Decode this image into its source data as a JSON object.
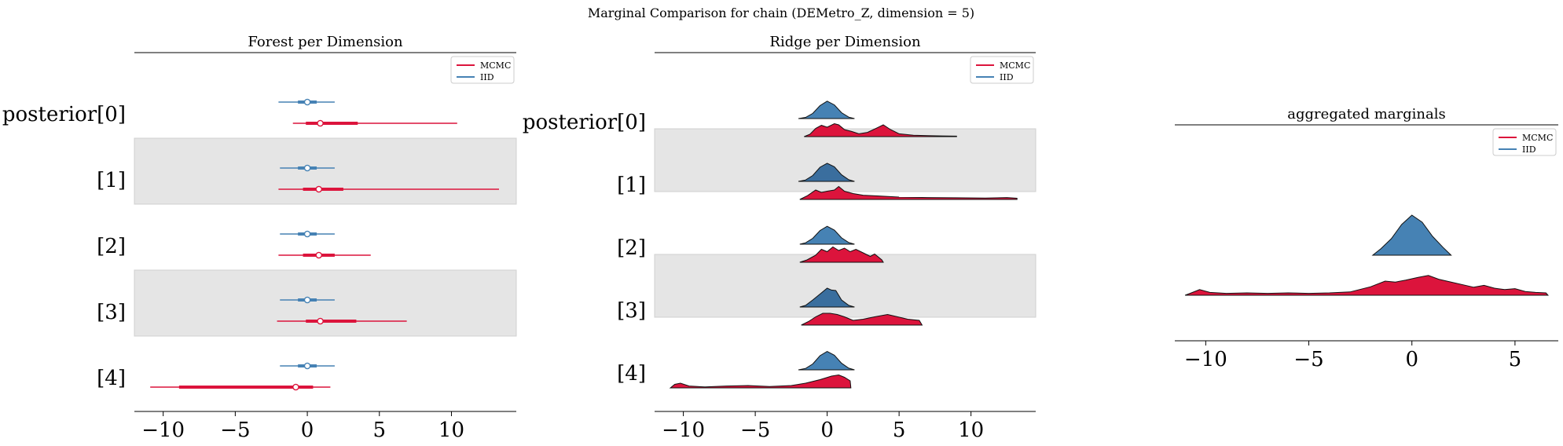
{
  "figure": {
    "suptitle": "Marginal Comparison for chain (DEMetro_Z, dimension = 5)"
  },
  "colors": {
    "mcmc": "#dc143c",
    "iid": "#4682b4",
    "iid_dark": "#3a6e9e",
    "band": "#e5e5e5"
  },
  "chart_data": [
    {
      "type": "forest",
      "title": "Forest per Dimension",
      "row_labels": [
        "posterior[0]",
        "[1]",
        "[2]",
        "[3]",
        "[4]"
      ],
      "xlim": [
        -12,
        14.5
      ],
      "xticks": [
        -10,
        -5,
        0,
        5,
        10
      ],
      "xtick_labels": [
        "−10",
        "−5",
        "0",
        "5",
        "10"
      ],
      "legend": {
        "placement": "top-right",
        "entries": [
          "MCMC",
          "IID"
        ]
      },
      "series": [
        {
          "name": "IID",
          "rows": [
            {
              "median": 0.0,
              "hdi94": [
                -2.0,
                1.9
              ],
              "iqr": [
                -0.65,
                0.65
              ]
            },
            {
              "median": 0.0,
              "hdi94": [
                -1.9,
                1.9
              ],
              "iqr": [
                -0.65,
                0.65
              ]
            },
            {
              "median": 0.0,
              "hdi94": [
                -1.9,
                1.9
              ],
              "iqr": [
                -0.65,
                0.65
              ]
            },
            {
              "median": 0.0,
              "hdi94": [
                -1.9,
                1.9
              ],
              "iqr": [
                -0.65,
                0.65
              ]
            },
            {
              "median": 0.0,
              "hdi94": [
                -1.9,
                1.9
              ],
              "iqr": [
                -0.65,
                0.65
              ]
            }
          ]
        },
        {
          "name": "MCMC",
          "rows": [
            {
              "median": 0.9,
              "hdi94": [
                -1.0,
                10.4
              ],
              "iqr": [
                -0.1,
                3.5
              ]
            },
            {
              "median": 0.8,
              "hdi94": [
                -2.0,
                13.3
              ],
              "iqr": [
                -0.3,
                2.5
              ]
            },
            {
              "median": 0.8,
              "hdi94": [
                -2.0,
                4.4
              ],
              "iqr": [
                -0.3,
                1.9
              ]
            },
            {
              "median": 0.9,
              "hdi94": [
                -2.1,
                6.9
              ],
              "iqr": [
                -0.1,
                3.4
              ]
            },
            {
              "median": -0.8,
              "hdi94": [
                -10.9,
                1.6
              ],
              "iqr": [
                -8.9,
                0.4
              ]
            }
          ]
        }
      ]
    },
    {
      "type": "ridgeline",
      "title": "Ridge per Dimension",
      "row_labels": [
        "posterior[0]",
        "[1]",
        "[2]",
        "[3]",
        "[4]"
      ],
      "xlim": [
        -12,
        14.5
      ],
      "xticks": [
        -10,
        -5,
        0,
        5,
        10
      ],
      "xtick_labels": [
        "−10",
        "−5",
        "0",
        "5",
        "10"
      ],
      "legend": {
        "placement": "top-right",
        "entries": [
          "MCMC",
          "IID"
        ]
      },
      "series": [
        {
          "name": "IID",
          "rows": [
            {
              "points": [
                [
                  -2.0,
                  0.0
                ],
                [
                  -1.5,
                  0.05
                ],
                [
                  -1.0,
                  0.22
                ],
                [
                  -0.5,
                  0.55
                ],
                [
                  0.0,
                  0.74
                ],
                [
                  0.5,
                  0.58
                ],
                [
                  1.0,
                  0.25
                ],
                [
                  1.5,
                  0.06
                ],
                [
                  1.9,
                  0.0
                ]
              ]
            },
            {
              "points": [
                [
                  -2.0,
                  0.0
                ],
                [
                  -1.5,
                  0.06
                ],
                [
                  -1.0,
                  0.25
                ],
                [
                  -0.5,
                  0.6
                ],
                [
                  0.0,
                  0.77
                ],
                [
                  0.5,
                  0.62
                ],
                [
                  1.0,
                  0.28
                ],
                [
                  1.5,
                  0.07
                ],
                [
                  1.9,
                  0.0
                ]
              ]
            },
            {
              "points": [
                [
                  -1.9,
                  0.0
                ],
                [
                  -1.5,
                  0.06
                ],
                [
                  -1.0,
                  0.25
                ],
                [
                  -0.5,
                  0.58
                ],
                [
                  0.0,
                  0.76
                ],
                [
                  0.5,
                  0.6
                ],
                [
                  1.0,
                  0.27
                ],
                [
                  1.5,
                  0.07
                ],
                [
                  1.9,
                  0.0
                ]
              ]
            },
            {
              "points": [
                [
                  -1.9,
                  0.0
                ],
                [
                  -1.5,
                  0.07
                ],
                [
                  -1.0,
                  0.3
                ],
                [
                  -0.5,
                  0.55
                ],
                [
                  0.0,
                  0.8
                ],
                [
                  0.3,
                  0.72
                ],
                [
                  0.6,
                  0.7
                ],
                [
                  1.0,
                  0.3
                ],
                [
                  1.5,
                  0.07
                ],
                [
                  1.9,
                  0.0
                ]
              ]
            },
            {
              "points": [
                [
                  -2.0,
                  0.0
                ],
                [
                  -1.5,
                  0.06
                ],
                [
                  -1.0,
                  0.25
                ],
                [
                  -0.5,
                  0.6
                ],
                [
                  0.0,
                  0.78
                ],
                [
                  0.5,
                  0.62
                ],
                [
                  1.0,
                  0.28
                ],
                [
                  1.5,
                  0.07
                ],
                [
                  1.9,
                  0.0
                ]
              ]
            }
          ]
        },
        {
          "name": "MCMC",
          "rows": [
            {
              "points": [
                [
                  -1.6,
                  0.0
                ],
                [
                  -1.2,
                  0.1
                ],
                [
                  -0.8,
                  0.35
                ],
                [
                  -0.4,
                  0.48
                ],
                [
                  0.0,
                  0.4
                ],
                [
                  0.5,
                  0.55
                ],
                [
                  0.8,
                  0.5
                ],
                [
                  1.2,
                  0.3
                ],
                [
                  1.7,
                  0.22
                ],
                [
                  2.2,
                  0.12
                ],
                [
                  2.8,
                  0.18
                ],
                [
                  3.5,
                  0.38
                ],
                [
                  3.9,
                  0.5
                ],
                [
                  4.4,
                  0.3
                ],
                [
                  5.0,
                  0.12
                ],
                [
                  6.0,
                  0.06
                ],
                [
                  7.0,
                  0.04
                ],
                [
                  8.0,
                  0.03
                ],
                [
                  9.0,
                  0.02
                ]
              ]
            },
            {
              "points": [
                [
                  -1.9,
                  0.0
                ],
                [
                  -1.4,
                  0.15
                ],
                [
                  -0.8,
                  0.4
                ],
                [
                  -0.4,
                  0.3
                ],
                [
                  0.0,
                  0.35
                ],
                [
                  0.5,
                  0.4
                ],
                [
                  0.8,
                  0.55
                ],
                [
                  1.2,
                  0.35
                ],
                [
                  1.8,
                  0.25
                ],
                [
                  2.5,
                  0.18
                ],
                [
                  3.5,
                  0.15
                ],
                [
                  5.0,
                  0.1
                ],
                [
                  7.0,
                  0.08
                ],
                [
                  9.0,
                  0.07
                ],
                [
                  11.0,
                  0.06
                ],
                [
                  12.5,
                  0.08
                ],
                [
                  13.2,
                  0.05
                ]
              ]
            },
            {
              "points": [
                [
                  -1.9,
                  0.0
                ],
                [
                  -1.4,
                  0.1
                ],
                [
                  -0.8,
                  0.3
                ],
                [
                  -0.4,
                  0.55
                ],
                [
                  0.0,
                  0.45
                ],
                [
                  0.4,
                  0.65
                ],
                [
                  0.8,
                  0.5
                ],
                [
                  1.2,
                  0.6
                ],
                [
                  1.6,
                  0.45
                ],
                [
                  2.0,
                  0.55
                ],
                [
                  2.5,
                  0.4
                ],
                [
                  3.0,
                  0.25
                ],
                [
                  3.3,
                  0.35
                ],
                [
                  3.8,
                  0.1
                ],
                [
                  3.9,
                  0.0
                ]
              ]
            },
            {
              "points": [
                [
                  -1.8,
                  0.0
                ],
                [
                  -1.3,
                  0.15
                ],
                [
                  -0.8,
                  0.35
                ],
                [
                  -0.3,
                  0.5
                ],
                [
                  0.2,
                  0.5
                ],
                [
                  0.7,
                  0.45
                ],
                [
                  1.2,
                  0.35
                ],
                [
                  1.8,
                  0.2
                ],
                [
                  2.5,
                  0.25
                ],
                [
                  3.3,
                  0.35
                ],
                [
                  4.2,
                  0.45
                ],
                [
                  4.9,
                  0.35
                ],
                [
                  5.6,
                  0.25
                ],
                [
                  6.4,
                  0.2
                ],
                [
                  6.6,
                  0.0
                ]
              ]
            },
            {
              "points": [
                [
                  -10.9,
                  0.0
                ],
                [
                  -10.6,
                  0.15
                ],
                [
                  -10.2,
                  0.2
                ],
                [
                  -9.6,
                  0.08
                ],
                [
                  -8.5,
                  0.04
                ],
                [
                  -7.0,
                  0.08
                ],
                [
                  -5.5,
                  0.1
                ],
                [
                  -4.0,
                  0.06
                ],
                [
                  -2.5,
                  0.1
                ],
                [
                  -1.5,
                  0.2
                ],
                [
                  -0.5,
                  0.35
                ],
                [
                  0.3,
                  0.5
                ],
                [
                  0.8,
                  0.55
                ],
                [
                  1.2,
                  0.45
                ],
                [
                  1.6,
                  0.3
                ],
                [
                  1.65,
                  0.0
                ]
              ]
            }
          ]
        }
      ]
    },
    {
      "type": "ridgeline",
      "title": "aggregated marginals",
      "xlim": [
        -11.5,
        7.1
      ],
      "xticks": [
        -10,
        -5,
        0,
        5
      ],
      "xtick_labels": [
        "−10",
        "−5",
        "0",
        "5"
      ],
      "legend": {
        "placement": "top-right",
        "entries": [
          "MCMC",
          "IID"
        ]
      },
      "series": [
        {
          "name": "IID",
          "points": [
            [
              -1.9,
              0.0
            ],
            [
              -1.5,
              0.14
            ],
            [
              -1.0,
              0.35
            ],
            [
              -0.5,
              0.65
            ],
            [
              0.0,
              0.85
            ],
            [
              0.5,
              0.7
            ],
            [
              1.0,
              0.4
            ],
            [
              1.5,
              0.17
            ],
            [
              1.9,
              0.0
            ]
          ]
        },
        {
          "name": "MCMC",
          "points": [
            [
              -11.0,
              0.0
            ],
            [
              -10.7,
              0.05
            ],
            [
              -10.3,
              0.12
            ],
            [
              -9.8,
              0.06
            ],
            [
              -9.0,
              0.04
            ],
            [
              -8.0,
              0.05
            ],
            [
              -7.0,
              0.04
            ],
            [
              -6.0,
              0.05
            ],
            [
              -5.0,
              0.04
            ],
            [
              -4.0,
              0.05
            ],
            [
              -3.0,
              0.07
            ],
            [
              -2.0,
              0.18
            ],
            [
              -1.3,
              0.3
            ],
            [
              -0.8,
              0.28
            ],
            [
              -0.3,
              0.32
            ],
            [
              0.3,
              0.38
            ],
            [
              0.8,
              0.42
            ],
            [
              1.3,
              0.34
            ],
            [
              1.9,
              0.28
            ],
            [
              2.5,
              0.22
            ],
            [
              3.0,
              0.17
            ],
            [
              3.5,
              0.21
            ],
            [
              4.0,
              0.15
            ],
            [
              4.5,
              0.12
            ],
            [
              5.0,
              0.14
            ],
            [
              5.5,
              0.08
            ],
            [
              6.0,
              0.06
            ],
            [
              6.5,
              0.05
            ],
            [
              6.6,
              0.0
            ]
          ]
        }
      ]
    }
  ]
}
